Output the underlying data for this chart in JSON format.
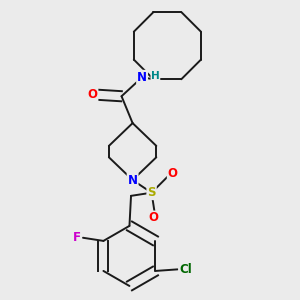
{
  "background_color": "#ebebeb",
  "bond_color": "#1a1a1a",
  "atom_colors": {
    "N": "#0000ff",
    "O": "#ff0000",
    "F": "#cc00cc",
    "Cl": "#006600",
    "S": "#aaaa00",
    "H_label": "#008888"
  },
  "figsize": [
    3.0,
    3.0
  ],
  "dpi": 100
}
